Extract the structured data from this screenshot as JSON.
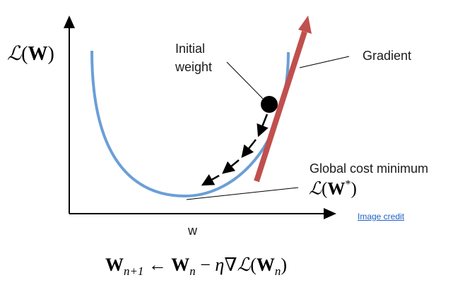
{
  "axes": {
    "y_label": {
      "script": "ℒ",
      "open": "(",
      "bold": "W",
      "close": ")"
    },
    "x_label": "w"
  },
  "annotations": {
    "initial_weight_line1": "Initial",
    "initial_weight_line2": "weight",
    "gradient": "Gradient",
    "global_min": "Global cost minimum",
    "global_min_formula": {
      "script": "ℒ",
      "open": "(",
      "bold": "W",
      "sup": "*",
      "close": ")"
    }
  },
  "link": {
    "image_credit": "Image credit"
  },
  "update_rule": {
    "lhs_bold": "W",
    "lhs_sub": "n+1",
    "arrow": " ← ",
    "rhs_bold": "W",
    "rhs_sub": "n",
    "minus": " − ",
    "eta": "η",
    "nabla": "∇",
    "script": "ℒ",
    "open": "(",
    "inner_bold": "W",
    "inner_sub": "n",
    "close": ")"
  },
  "colors": {
    "curve": "#6a9fd8",
    "gradient_arrow": "#c0504d",
    "axes": "#000000",
    "link": "#1f5fc4"
  }
}
